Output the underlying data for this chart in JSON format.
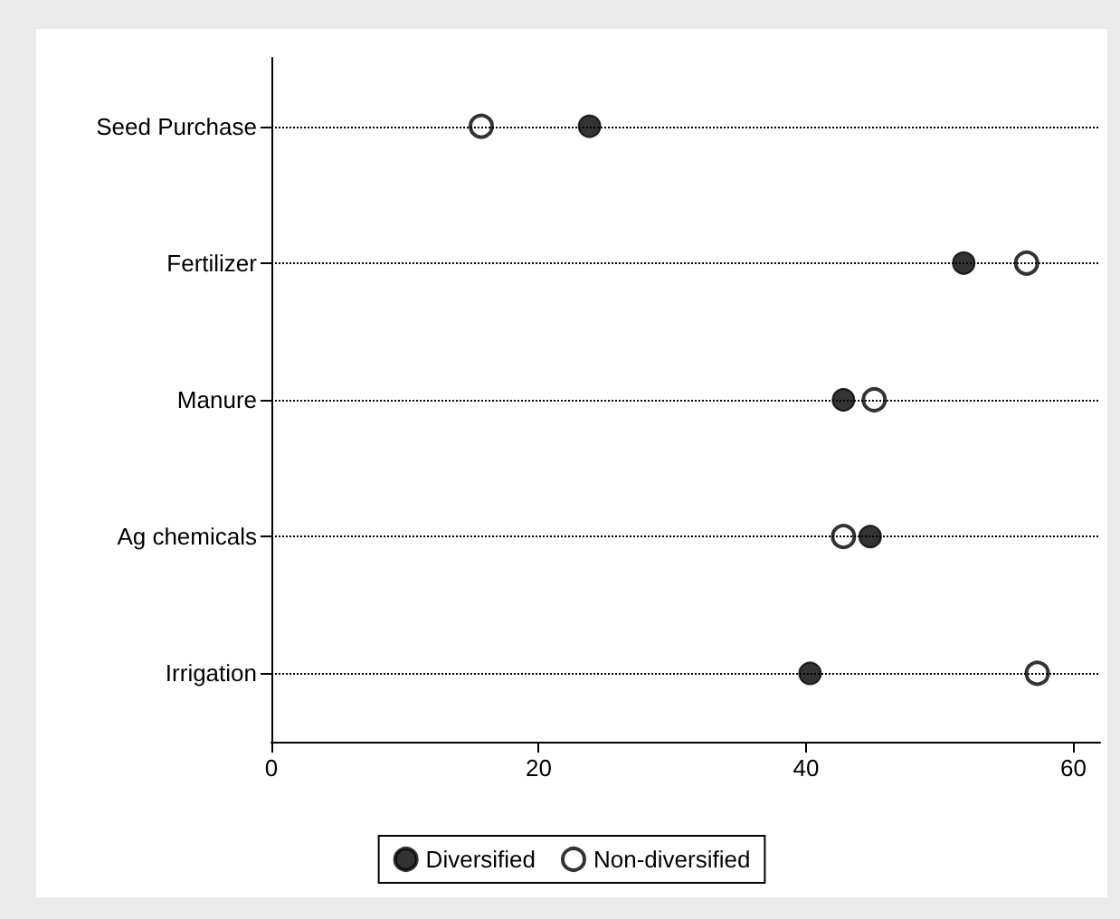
{
  "chart_data": {
    "type": "scatter",
    "orientation": "horizontal",
    "categories": [
      "Seed Purchase",
      "Fertilizer",
      "Manure",
      "Ag chemicals",
      "Irrigation"
    ],
    "series": [
      {
        "name": "Diversified",
        "color": "#000000",
        "values": [
          23.8,
          51.8,
          42.8,
          44.8,
          40.3
        ]
      },
      {
        "name": "Non-diversified",
        "color": "#000000",
        "values": [
          15.7,
          56.5,
          45.1,
          42.8,
          57.3
        ]
      }
    ],
    "xlim": [
      0,
      62
    ],
    "xticks": [
      0,
      20,
      40,
      60
    ],
    "grid": "y",
    "legend": "bottom",
    "marker": "circle"
  }
}
